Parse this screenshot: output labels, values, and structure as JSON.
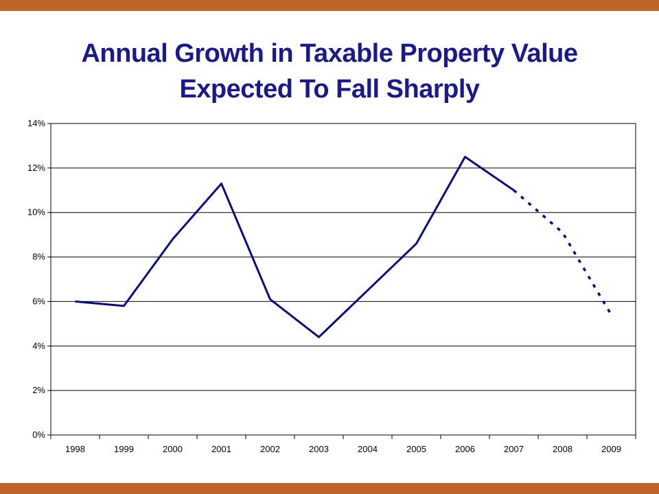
{
  "slide": {
    "title_line1": "Annual Growth in Taxable Property Value",
    "title_line2": "Expected To Fall Sharply"
  },
  "colors": {
    "band": "#c0652a",
    "title": "#1a1a8c",
    "series": "#0a0a80",
    "grid": "#000000"
  },
  "chart_data": {
    "type": "line",
    "title": "Annual Growth in Taxable Property Value Expected To Fall Sharply",
    "xlabel": "",
    "ylabel": "",
    "categories": [
      "1998",
      "1999",
      "2000",
      "2001",
      "2002",
      "2003",
      "2004",
      "2005",
      "2006",
      "2007",
      "2008",
      "2009"
    ],
    "y_ticks": [
      "0%",
      "2%",
      "4%",
      "6%",
      "8%",
      "10%",
      "12%",
      "14%"
    ],
    "ylim": [
      0,
      14
    ],
    "grid": true,
    "legend": "none",
    "series": [
      {
        "values": [
          6.0,
          5.8,
          8.8,
          11.3,
          6.1,
          4.4,
          6.5,
          8.6,
          12.5,
          11.0,
          null,
          null
        ],
        "style": "solid"
      },
      {
        "values": [
          null,
          null,
          null,
          null,
          null,
          null,
          null,
          null,
          null,
          11.0,
          9.1,
          5.4
        ],
        "style": "dotted"
      }
    ]
  }
}
